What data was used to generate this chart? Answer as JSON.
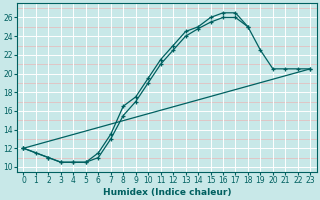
{
  "xlabel": "Humidex (Indice chaleur)",
  "xlim": [
    -0.5,
    23.5
  ],
  "ylim": [
    9.5,
    27.5
  ],
  "xticks": [
    0,
    1,
    2,
    3,
    4,
    5,
    6,
    7,
    8,
    9,
    10,
    11,
    12,
    13,
    14,
    15,
    16,
    17,
    18,
    19,
    20,
    21,
    22,
    23
  ],
  "yticks": [
    10,
    12,
    14,
    16,
    18,
    20,
    22,
    24,
    26
  ],
  "bg_color": "#c8e8e8",
  "major_grid_color": "#ffffff",
  "minor_grid_color": "#e8b8b8",
  "line_color": "#006060",
  "line1_x": [
    0,
    1,
    2,
    3,
    4,
    5,
    6,
    7,
    8,
    9,
    10,
    11,
    12,
    13,
    14,
    15,
    16,
    17,
    18
  ],
  "line1_y": [
    12,
    11.5,
    11,
    10.5,
    10.5,
    10.5,
    11.5,
    13.5,
    16.5,
    17.5,
    19.5,
    21.5,
    23,
    24.5,
    25,
    26,
    26.5,
    26.5,
    25
  ],
  "line2_x": [
    0,
    2,
    3,
    4,
    5,
    6,
    7,
    8,
    9,
    10,
    11,
    12,
    13,
    14,
    15,
    16,
    17,
    18,
    19,
    20,
    21,
    22,
    23
  ],
  "line2_y": [
    12,
    11,
    10.5,
    10.5,
    10.5,
    11,
    13,
    15.5,
    17,
    19,
    21,
    22.5,
    24,
    24.8,
    25.5,
    26,
    26,
    25,
    22.5,
    20.5,
    20.5,
    20.5,
    20.5
  ],
  "line3_x": [
    0,
    23
  ],
  "line3_y": [
    12,
    20.5
  ]
}
